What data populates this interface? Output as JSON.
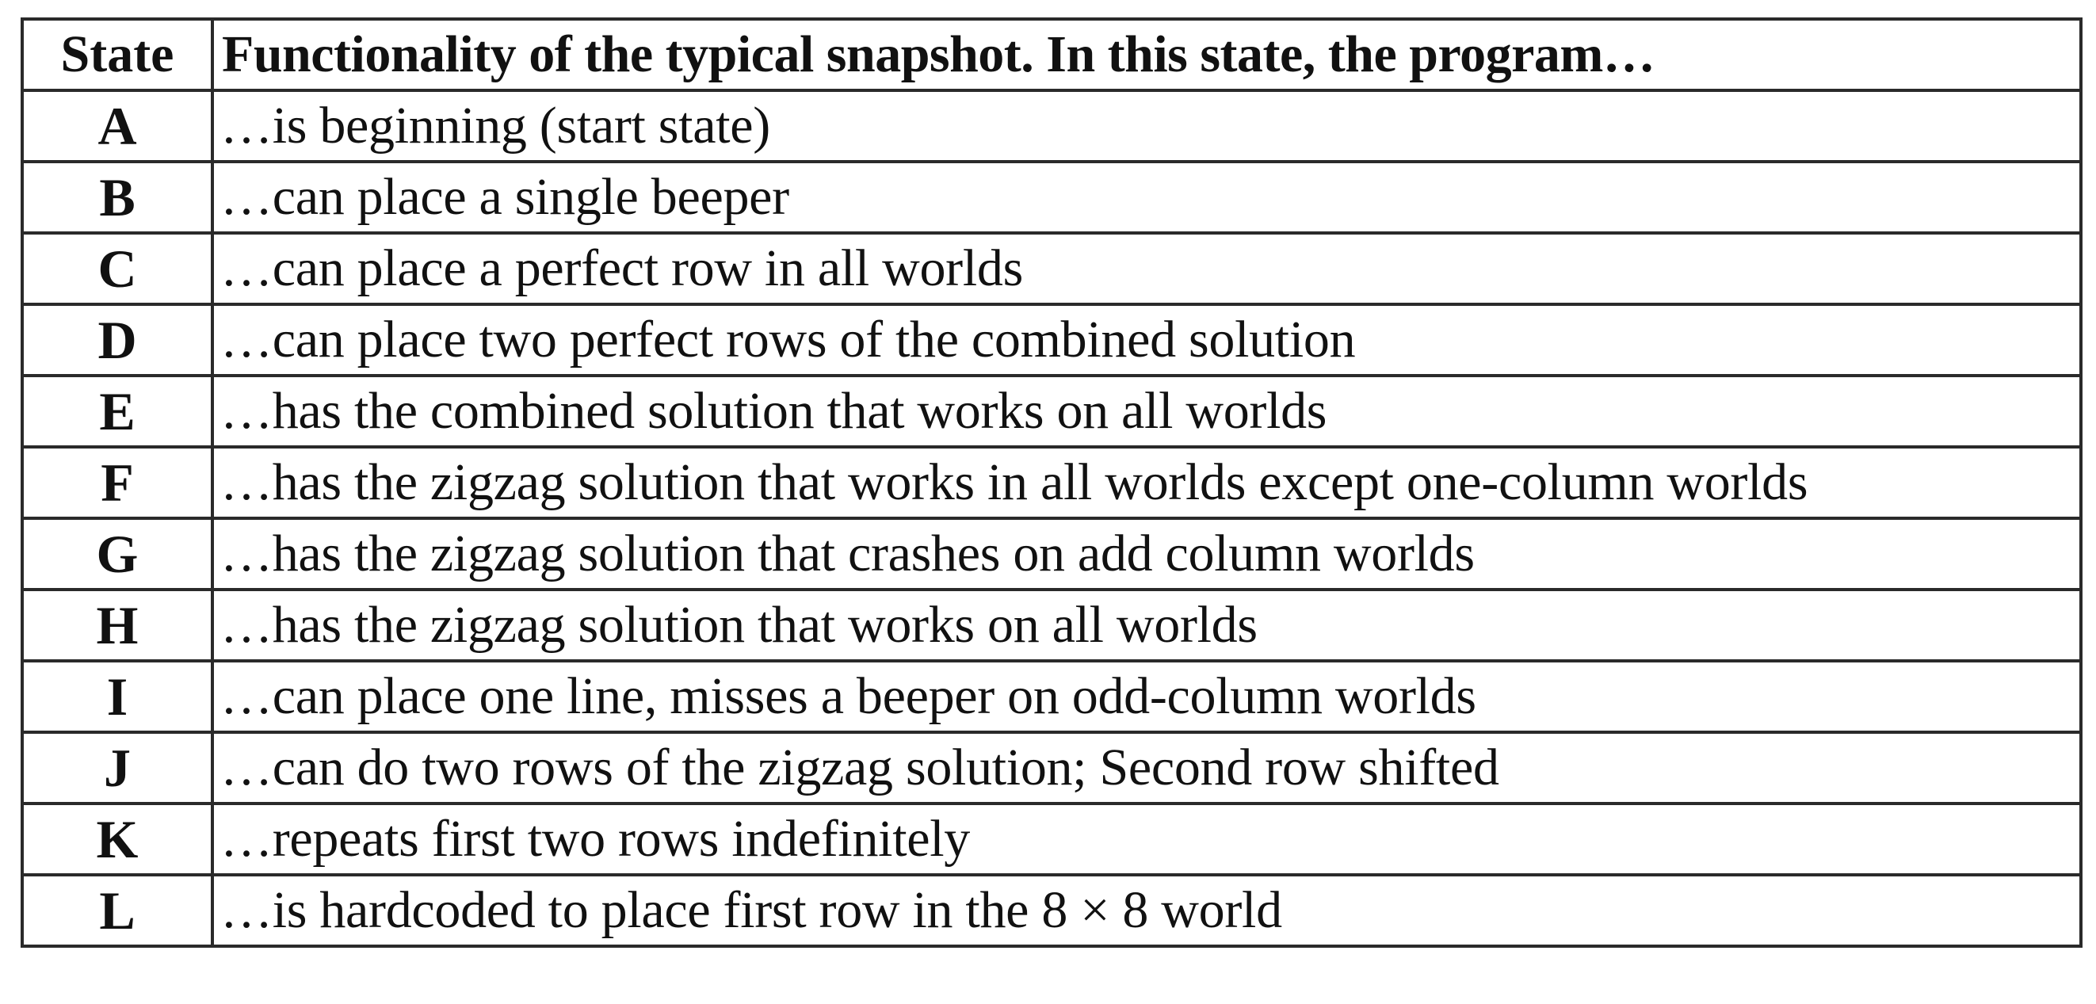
{
  "table": {
    "headers": {
      "state": "State",
      "functionality": "Functionality of the typical snapshot. In this state, the program…"
    },
    "rows": [
      {
        "state": "A",
        "functionality": "…is beginning (start state)"
      },
      {
        "state": "B",
        "functionality": "…can place a single beeper"
      },
      {
        "state": "C",
        "functionality": "…can place a perfect row in all worlds"
      },
      {
        "state": "D",
        "functionality": "…can place two perfect rows of the combined solution"
      },
      {
        "state": "E",
        "functionality": "…has the combined solution that works on all worlds"
      },
      {
        "state": "F",
        "functionality": "…has the zigzag solution that works in all worlds except one-column worlds"
      },
      {
        "state": "G",
        "functionality": "…has the zigzag solution that crashes on add column worlds"
      },
      {
        "state": "H",
        "functionality": "…has the zigzag solution that works on all worlds"
      },
      {
        "state": "I",
        "functionality": "…can place one line, misses a beeper on odd-column worlds"
      },
      {
        "state": "J",
        "functionality": "…can do two rows of the zigzag solution; Second row shifted"
      },
      {
        "state": "K",
        "functionality": "…repeats first two rows indefinitely"
      },
      {
        "state": "L",
        "functionality": "…is hardcoded to place first row in the 8 × 8 world"
      }
    ]
  }
}
